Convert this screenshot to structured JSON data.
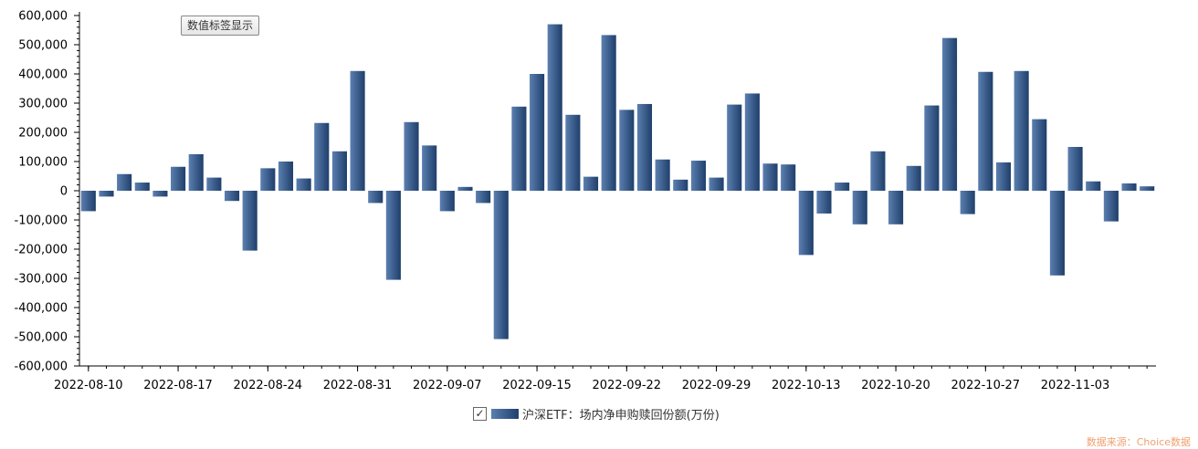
{
  "controls": {
    "data_label_toggle": "数值标签显示"
  },
  "legend": {
    "series_label": "沪深ETF：场内净申购赎回份额(万份)"
  },
  "source": "数据来源：Choice数据",
  "colors": {
    "bar_light": "#5b7fb0",
    "bar_dark": "#1f3f6b",
    "axis": "#000000"
  },
  "chart_data": {
    "type": "bar",
    "ylim": [
      -600000,
      600000
    ],
    "yticks": [
      -600000,
      -500000,
      -400000,
      -300000,
      -200000,
      -100000,
      0,
      100000,
      200000,
      300000,
      400000,
      500000,
      600000
    ],
    "ytick_labels": [
      "-600,000",
      "-500,000",
      "-400,000",
      "-300,000",
      "-200,000",
      "-100,000",
      "0",
      "100,000",
      "200,000",
      "300,000",
      "400,000",
      "500,000",
      "600,000"
    ],
    "xtick_labels": [
      "2022-08-10",
      "2022-08-17",
      "2022-08-24",
      "2022-08-31",
      "2022-09-07",
      "2022-09-15",
      "2022-09-22",
      "2022-09-29",
      "2022-10-13",
      "2022-10-20",
      "2022-10-27",
      "2022-11-03"
    ],
    "xtick_indices": [
      0,
      5,
      10,
      15,
      20,
      25,
      30,
      35,
      40,
      45,
      50,
      55
    ],
    "values": [
      -70000,
      -20000,
      57000,
      28000,
      -20000,
      82000,
      125000,
      45000,
      -35000,
      -205000,
      77000,
      100000,
      42000,
      232000,
      135000,
      410000,
      -42000,
      -305000,
      235000,
      155000,
      -70000,
      13000,
      -42000,
      -508000,
      288000,
      400000,
      570000,
      260000,
      48000,
      533000,
      277000,
      297000,
      107000,
      38000,
      103000,
      45000,
      295000,
      333000,
      93000,
      90000,
      -220000,
      -78000,
      28000,
      -115000,
      135000,
      -115000,
      85000,
      292000,
      523000,
      -80000,
      407000,
      97000,
      410000,
      245000,
      -290000,
      150000,
      32000,
      -105000,
      25000,
      15000
    ],
    "xlabel": "",
    "ylabel": "",
    "legend": "bottom-center",
    "grid": false
  }
}
